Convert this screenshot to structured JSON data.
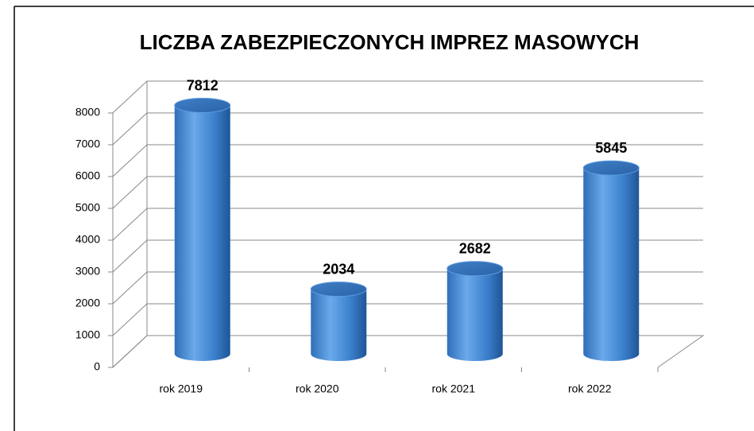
{
  "chart_data": {
    "type": "bar",
    "title": "LICZBA ZABEZPIECZONYCH IMPREZ MASOWYCH",
    "categories": [
      "rok 2019",
      "rok 2020",
      "rok 2021",
      "rok 2022"
    ],
    "values": [
      7812,
      2034,
      2682,
      5845
    ],
    "color": "#4a8fd6",
    "ylim": [
      0,
      8000
    ],
    "yticks": [
      0,
      1000,
      2000,
      3000,
      4000,
      5000,
      6000,
      7000,
      8000
    ],
    "grid": true
  }
}
